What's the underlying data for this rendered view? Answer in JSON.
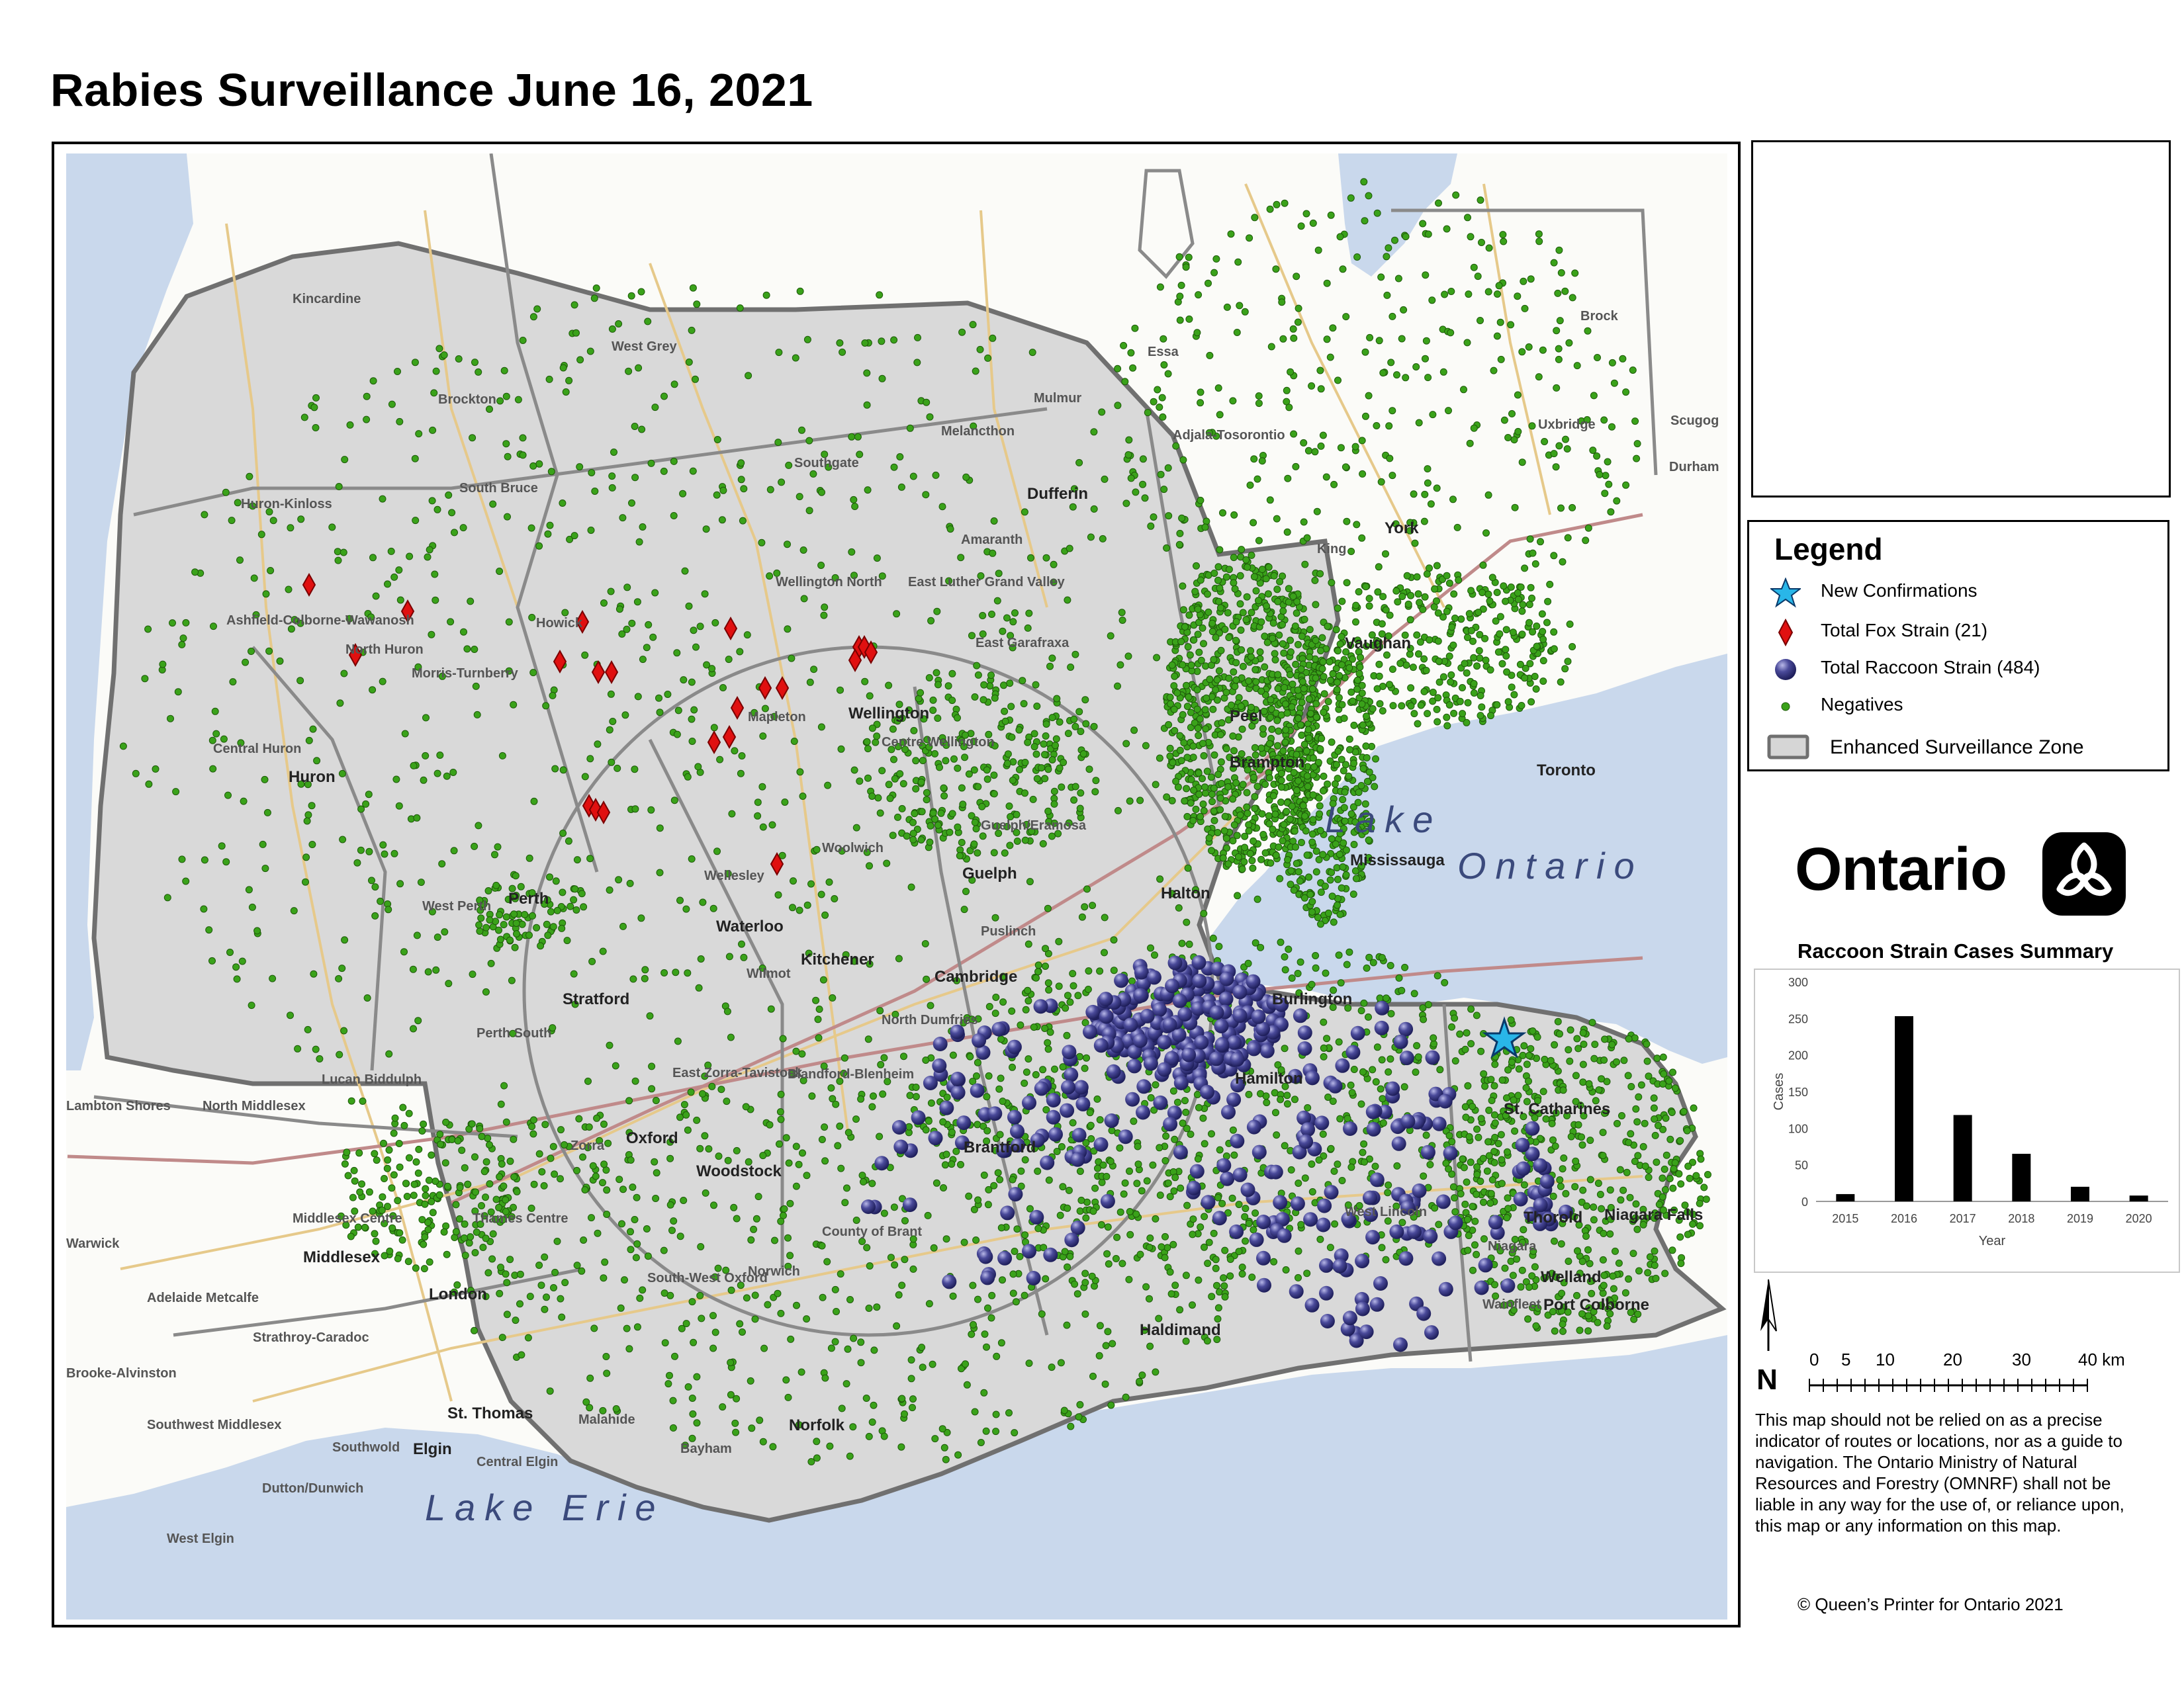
{
  "title": "Rabies Surveillance June 16, 2021",
  "map": {
    "lakes": [
      "Lake Ontario",
      "Lake Erie"
    ],
    "lake_ontario_line1": "Lake",
    "lake_ontario_line2": "Ontario",
    "lake_erie": "Lake Erie",
    "places": [
      "Kincardine",
      "West Grey",
      "Essa",
      "Brock",
      "Mulmur",
      "Melancthon",
      "Adjala-Tosorontio",
      "Uxbridge",
      "Scugog",
      "Durham",
      "Brockton",
      "Southgate",
      "Huron-Kinloss",
      "South Bruce",
      "Dufferin",
      "Amaranth",
      "Wellington North",
      "East Luther Grand Valley",
      "King",
      "York",
      "Ashfield-Colborne-Wawanosh",
      "Howick",
      "North Huron",
      "Morris-Turnberry",
      "East Garafraxa",
      "Vaughan",
      "Wellington",
      "Mapleton",
      "Centre Wellington",
      "Peel",
      "Brampton",
      "Toronto",
      "Central Huron",
      "Huron",
      "Guelph/Eramosa",
      "Woolwich",
      "Guelph",
      "Mississauga",
      "Wellesley",
      "Halton",
      "West Perth",
      "Perth",
      "Waterloo",
      "Puslinch",
      "Kitchener",
      "Wilmot",
      "Cambridge",
      "Burlington",
      "Stratford",
      "North Dumfries",
      "Perth South",
      "East Zorra-Tavistock",
      "Blandford-Blenheim",
      "Hamilton",
      "Lucan Biddulph",
      "North Middlesex",
      "Lambton Shores",
      "Zorra",
      "Oxford",
      "Brantford",
      "St. Catharines",
      "Woodstock",
      "Middlesex Centre",
      "Thames Centre",
      "County of Brant",
      "West Lincoln",
      "Thorold",
      "Niagara Falls",
      "Niagara",
      "Warwick",
      "Middlesex",
      "Norwich",
      "South-West Oxford",
      "Welland",
      "Adelaide Metcalfe",
      "London",
      "Strathroy-Caradoc",
      "Haldimand",
      "Wainfleet",
      "Port Colborne",
      "Brooke-Alvinston",
      "St. Thomas",
      "Malahide",
      "Norfolk",
      "Southwest Middlesex",
      "Southwold",
      "Elgin",
      "Bayham",
      "Central Elgin",
      "Dutton/Dunwich",
      "West Elgin"
    ]
  },
  "legend": {
    "title": "Legend",
    "items": [
      {
        "label": "New Confirmations",
        "symbol": "star",
        "color": "#29b6e8"
      },
      {
        "label": "Total Fox Strain (21)",
        "symbol": "diamond",
        "color": "#e01010"
      },
      {
        "label": "Total Raccoon Strain (484)",
        "symbol": "circle",
        "color": "#3a3a8c"
      },
      {
        "label": "Negatives",
        "symbol": "dot",
        "color": "#3aa21a"
      },
      {
        "label": "Enhanced Surveillance Zone",
        "symbol": "zone",
        "color": "#d6d6d6"
      }
    ]
  },
  "brand": {
    "wordmark": "Ontario"
  },
  "chart_title": "Raccoon Strain Cases Summary",
  "chart_data": {
    "type": "bar",
    "title": "Raccoon Strain Cases Summary",
    "categories": [
      "2015",
      "2016",
      "2017",
      "2018",
      "2019",
      "2020"
    ],
    "values": [
      10,
      253,
      118,
      65,
      20,
      8
    ],
    "xlabel": "Year",
    "ylabel": "Cases",
    "ylim": [
      0,
      300
    ],
    "yticks": [
      "0",
      "50",
      "100",
      "150",
      "200",
      "250",
      "300"
    ],
    "color": "#000000",
    "grid": false
  },
  "north_label": "N",
  "scale": {
    "labels": [
      "0",
      "5",
      "10",
      "20",
      "30",
      "40 km"
    ]
  },
  "disclaimer": "This map should not be relied on as a precise indicator of routes or locations, nor as a guide to navigation. The Ontario Ministry of Natural Resources and Forestry (OMNRF) shall not be liable in any way for the use of, or reliance upon, this map or any information on this map.",
  "copyright": "© Queen’s Printer for Ontario 2021"
}
